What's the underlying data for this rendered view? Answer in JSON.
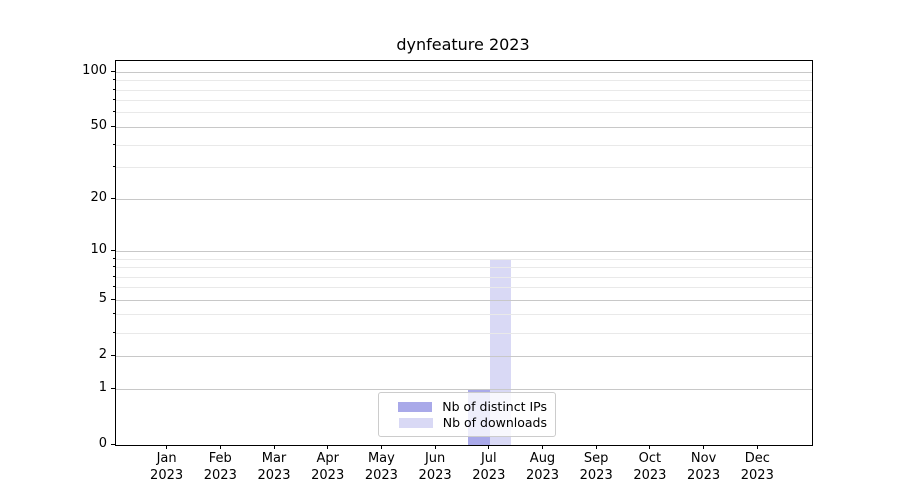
{
  "title": "dynfeature 2023",
  "chart_data": {
    "type": "bar",
    "title": "dynfeature 2023",
    "categories": [
      "Jan 2023",
      "Feb 2023",
      "Mar 2023",
      "Apr 2023",
      "May 2023",
      "Jun 2023",
      "Jul 2023",
      "Aug 2023",
      "Sep 2023",
      "Oct 2023",
      "Nov 2023",
      "Dec 2023"
    ],
    "series": [
      {
        "name": "Nb of distinct IPs",
        "color": "#a9a9e9",
        "values": [
          0,
          0,
          0,
          0,
          0,
          0,
          1,
          0,
          0,
          0,
          0,
          0
        ]
      },
      {
        "name": "Nb of downloads",
        "color": "#d9d9f5",
        "values": [
          0,
          0,
          0,
          0,
          0,
          0,
          9,
          0,
          0,
          0,
          0,
          0
        ]
      }
    ],
    "xlabel": "",
    "ylabel": "",
    "yscale": "log(1+x)",
    "y_major_ticks": [
      0,
      1,
      2,
      5,
      10,
      20,
      50,
      100
    ],
    "y_minor_ticks": [
      3,
      4,
      6,
      7,
      8,
      9,
      30,
      40,
      60,
      70,
      80,
      90
    ],
    "ylim": [
      0,
      115
    ],
    "grid": "horizontal",
    "legend_position": "lower center",
    "colors": {
      "major_grid": "#c8c8c8",
      "minor_grid": "#e9e9e9",
      "spine": "#000000",
      "background": "#ffffff"
    }
  }
}
